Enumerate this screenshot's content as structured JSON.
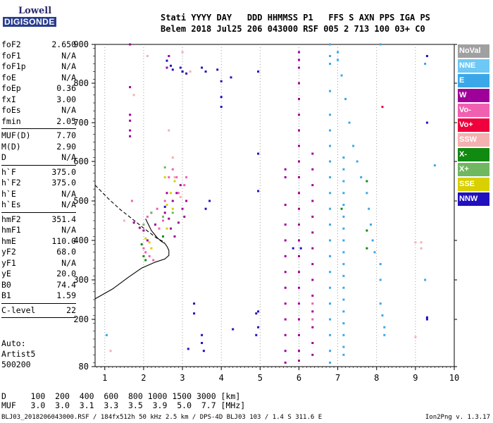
{
  "logo": {
    "line1": "Lowell",
    "line2": "DIGISONDE"
  },
  "header": {
    "labels": "Stati YYYY DAY   DDD HHMMSS P1   FFS S AXN PPS IGA PS",
    "values": "Belem 2018 Jul25 206 043000 RSF 005 2 713 100 03+ C0"
  },
  "params": [
    {
      "name": "foF2",
      "value": "2.650"
    },
    {
      "name": "foF1",
      "value": "N/A"
    },
    {
      "name": "foF1p",
      "value": "N/A"
    },
    {
      "name": "foE",
      "value": "N/A"
    },
    {
      "name": "foEp",
      "value": "0.36"
    },
    {
      "name": "fxI",
      "value": "3.00"
    },
    {
      "name": "foEs",
      "value": "N/A"
    },
    {
      "name": "fmin",
      "value": "2.05"
    },
    {
      "sep": true
    },
    {
      "name": "MUF(D)",
      "value": "7.70"
    },
    {
      "name": "M(D)",
      "value": "2.90"
    },
    {
      "name": "D",
      "value": "N/A"
    },
    {
      "sep": true
    },
    {
      "name": "h`F",
      "value": "375.0"
    },
    {
      "name": "h`F2",
      "value": "375.0"
    },
    {
      "name": "h`E",
      "value": "N/A"
    },
    {
      "name": "h`Es",
      "value": "N/A"
    },
    {
      "sep": true
    },
    {
      "name": "hmF2",
      "value": "351.4"
    },
    {
      "name": "hmF1",
      "value": "N/A"
    },
    {
      "name": "hmE",
      "value": "110.0"
    },
    {
      "name": "yF2",
      "value": "68.0"
    },
    {
      "name": "yF1",
      "value": "N/A"
    },
    {
      "name": "yE",
      "value": "20.0"
    },
    {
      "name": "B0",
      "value": "74.4"
    },
    {
      "name": "B1",
      "value": "1.59"
    },
    {
      "sep": true
    },
    {
      "name": "C-level",
      "value": "22"
    },
    {
      "sep": true
    }
  ],
  "auto": {
    "line1": "Auto:",
    "line2": "Artist5",
    "line3": "500200"
  },
  "muf_table": {
    "d_row": "D     100  200  400  600  800 1000 1500 3000 [km]",
    "muf_row": "MUF   3.0  3.0  3.1  3.3  3.5  3.9  5.0  7.7 [MHz]"
  },
  "footer": {
    "left": "BLJ03_2018206043000.RSF / 184fx512h 50 kHz 2.5 km / DPS-4D BLJ03 103 / 1.4 S 311.6 E",
    "right": "Ion2Png v. 1.3.17"
  },
  "legend": [
    {
      "label": "NoVal",
      "color": "#a0a0a0"
    },
    {
      "label": "NNE",
      "color": "#6ec8f5"
    },
    {
      "label": "E",
      "color": "#3aa8e8"
    },
    {
      "label": "W",
      "color": "#a0009a"
    },
    {
      "label": "Vo-",
      "color": "#f060b0"
    },
    {
      "label": "Vo+",
      "color": "#f0003c"
    },
    {
      "label": "SSW",
      "color": "#f5b0b0"
    },
    {
      "label": "X-",
      "color": "#108a10"
    },
    {
      "label": "X+",
      "color": "#70b860"
    },
    {
      "label": "SSE",
      "color": "#d8d000"
    },
    {
      "label": "NNW",
      "color": "#2010c0"
    }
  ],
  "chart_data": {
    "type": "scatter",
    "title": "",
    "xlabel": "",
    "ylabel": "",
    "xlim": [
      0.75,
      10
    ],
    "ylim": [
      80,
      900
    ],
    "x_ticks": [
      1,
      2,
      3,
      4,
      5,
      6,
      7,
      8,
      9,
      10
    ],
    "y_ticks": [
      80,
      200,
      300,
      400,
      500,
      600,
      700,
      800,
      900
    ],
    "grid": "vertical dotted at integer MHz",
    "series": [
      {
        "color_key": "W",
        "points": [
          [
            1.65,
            900
          ],
          [
            1.65,
            790
          ],
          [
            1.65,
            720
          ],
          [
            1.65,
            705
          ],
          [
            1.65,
            680
          ],
          [
            1.65,
            665
          ],
          [
            1.75,
            445
          ],
          [
            1.9,
            432
          ],
          [
            2.0,
            425
          ],
          [
            2.1,
            400
          ],
          [
            2.3,
            440
          ],
          [
            2.55,
            470
          ],
          [
            2.65,
            455
          ],
          [
            2.75,
            500
          ],
          [
            2.85,
            520
          ],
          [
            2.95,
            540
          ],
          [
            3.0,
            480
          ],
          [
            3.05,
            460
          ],
          [
            3.1,
            500
          ],
          [
            2.7,
            430
          ],
          [
            2.8,
            410
          ],
          [
            2.9,
            445
          ],
          [
            2.6,
            520
          ],
          [
            6.0,
            880
          ],
          [
            6.0,
            860
          ],
          [
            6.0,
            840
          ],
          [
            6.0,
            800
          ],
          [
            6.0,
            760
          ],
          [
            6.0,
            720
          ],
          [
            6.0,
            680
          ],
          [
            6.0,
            640
          ],
          [
            6.0,
            600
          ],
          [
            6.0,
            560
          ],
          [
            6.0,
            520
          ],
          [
            6.0,
            480
          ],
          [
            6.0,
            440
          ],
          [
            6.0,
            400
          ],
          [
            6.0,
            360
          ],
          [
            6.0,
            320
          ],
          [
            6.0,
            280
          ],
          [
            6.0,
            240
          ],
          [
            6.0,
            200
          ],
          [
            6.0,
            160
          ],
          [
            6.0,
            120
          ],
          [
            6.0,
            95
          ],
          [
            6.35,
            620
          ],
          [
            6.35,
            580
          ],
          [
            6.35,
            540
          ],
          [
            6.35,
            500
          ],
          [
            6.35,
            460
          ],
          [
            6.35,
            420
          ],
          [
            6.35,
            380
          ],
          [
            6.35,
            340
          ],
          [
            6.35,
            300
          ],
          [
            6.35,
            260
          ],
          [
            6.35,
            220
          ],
          [
            6.35,
            180
          ],
          [
            6.35,
            140
          ],
          [
            6.35,
            110
          ],
          [
            5.65,
            580
          ],
          [
            5.65,
            560
          ],
          [
            5.65,
            490
          ],
          [
            5.65,
            440
          ],
          [
            5.65,
            400
          ],
          [
            5.65,
            360
          ],
          [
            5.65,
            320
          ],
          [
            5.65,
            280
          ],
          [
            5.65,
            240
          ],
          [
            5.65,
            200
          ],
          [
            5.65,
            160
          ],
          [
            5.65,
            120
          ],
          [
            5.65,
            90
          ],
          [
            3.0,
            830
          ],
          [
            2.6,
            840
          ],
          [
            2.65,
            870
          ]
        ]
      },
      {
        "color_key": "NNW",
        "points": [
          [
            2.6,
            858
          ],
          [
            2.7,
            845
          ],
          [
            2.75,
            835
          ],
          [
            2.95,
            840
          ],
          [
            3.0,
            830
          ],
          [
            3.1,
            825
          ],
          [
            3.5,
            840
          ],
          [
            3.6,
            830
          ],
          [
            3.9,
            835
          ],
          [
            4.0,
            805
          ],
          [
            4.0,
            765
          ],
          [
            4.0,
            740
          ],
          [
            4.25,
            815
          ],
          [
            4.95,
            830
          ],
          [
            4.95,
            620
          ],
          [
            4.95,
            525
          ],
          [
            3.6,
            480
          ],
          [
            3.7,
            500
          ],
          [
            2.55,
            485
          ],
          [
            3.3,
            240
          ],
          [
            3.3,
            215
          ],
          [
            3.15,
            125
          ],
          [
            3.5,
            160
          ],
          [
            3.5,
            140
          ],
          [
            3.55,
            120
          ],
          [
            4.3,
            175
          ],
          [
            4.95,
            220
          ],
          [
            4.9,
            215
          ],
          [
            4.95,
            180
          ],
          [
            4.9,
            160
          ],
          [
            5.85,
            380
          ],
          [
            6.05,
            380
          ],
          [
            9.3,
            870
          ],
          [
            9.3,
            700
          ],
          [
            9.3,
            205
          ],
          [
            9.3,
            200
          ]
        ]
      },
      {
        "color_key": "E",
        "points": [
          [
            6.8,
            900
          ],
          [
            6.8,
            870
          ],
          [
            6.8,
            850
          ],
          [
            6.8,
            780
          ],
          [
            6.8,
            720
          ],
          [
            6.8,
            680
          ],
          [
            6.8,
            640
          ],
          [
            6.8,
            600
          ],
          [
            6.8,
            560
          ],
          [
            6.8,
            520
          ],
          [
            6.8,
            480
          ],
          [
            6.8,
            440
          ],
          [
            6.8,
            400
          ],
          [
            6.8,
            360
          ],
          [
            6.8,
            320
          ],
          [
            6.8,
            280
          ],
          [
            6.8,
            240
          ],
          [
            6.8,
            200
          ],
          [
            6.8,
            160
          ],
          [
            6.8,
            120
          ],
          [
            6.8,
            90
          ],
          [
            7.15,
            610
          ],
          [
            7.15,
            580
          ],
          [
            7.15,
            550
          ],
          [
            7.15,
            520
          ],
          [
            7.15,
            490
          ],
          [
            7.15,
            460
          ],
          [
            7.15,
            430
          ],
          [
            7.15,
            400
          ],
          [
            7.15,
            370
          ],
          [
            7.15,
            340
          ],
          [
            7.15,
            310
          ],
          [
            7.15,
            280
          ],
          [
            7.15,
            250
          ],
          [
            7.15,
            220
          ],
          [
            7.15,
            190
          ],
          [
            7.15,
            160
          ],
          [
            7.15,
            130
          ],
          [
            7.15,
            110
          ],
          [
            7.0,
            880
          ],
          [
            7.0,
            860
          ],
          [
            7.1,
            820
          ],
          [
            7.2,
            760
          ],
          [
            7.3,
            700
          ],
          [
            7.4,
            640
          ],
          [
            7.5,
            600
          ],
          [
            7.6,
            560
          ],
          [
            7.75,
            520
          ],
          [
            7.8,
            480
          ],
          [
            7.85,
            440
          ],
          [
            7.9,
            400
          ],
          [
            7.95,
            370
          ],
          [
            8.1,
            340
          ],
          [
            8.1,
            300
          ],
          [
            8.1,
            240
          ],
          [
            8.15,
            210
          ],
          [
            8.2,
            180
          ],
          [
            8.2,
            160
          ],
          [
            8.1,
            900
          ],
          [
            9.25,
            850
          ],
          [
            9.25,
            300
          ],
          [
            9.5,
            590
          ],
          [
            1.05,
            160
          ]
        ]
      },
      {
        "color_key": "Vo-",
        "points": [
          [
            2.1,
            460
          ],
          [
            2.2,
            470
          ],
          [
            2.35,
            480
          ],
          [
            2.4,
            430
          ],
          [
            2.5,
            450
          ],
          [
            2.55,
            500
          ],
          [
            2.65,
            560
          ],
          [
            2.75,
            580
          ],
          [
            2.85,
            560
          ],
          [
            2.9,
            520
          ],
          [
            3.05,
            540
          ],
          [
            3.1,
            560
          ],
          [
            1.7,
            500
          ],
          [
            2.0,
            380
          ],
          [
            2.05,
            370
          ],
          [
            2.15,
            360
          ],
          [
            2.25,
            350
          ],
          [
            6.35,
            240
          ],
          [
            6.35,
            200
          ]
        ]
      },
      {
        "color_key": "Vo+",
        "points": [
          [
            8.15,
            740
          ]
        ]
      },
      {
        "color_key": "SSW",
        "points": [
          [
            1.75,
            770
          ],
          [
            2.1,
            870
          ],
          [
            2.65,
            680
          ],
          [
            2.75,
            610
          ],
          [
            2.8,
            560
          ],
          [
            2.95,
            510
          ],
          [
            1.5,
            450
          ],
          [
            9.0,
            395
          ],
          [
            9.15,
            395
          ],
          [
            9.15,
            380
          ],
          [
            9.0,
            155
          ],
          [
            1.15,
            120
          ],
          [
            3.0,
            880
          ],
          [
            3.2,
            830
          ]
        ]
      },
      {
        "color_key": "X-",
        "points": [
          [
            2.0,
            360
          ],
          [
            2.05,
            350
          ],
          [
            1.95,
            390
          ],
          [
            2.5,
            410
          ],
          [
            7.1,
            480
          ],
          [
            7.75,
            550
          ],
          [
            7.75,
            425
          ],
          [
            7.75,
            380
          ]
        ]
      },
      {
        "color_key": "X+",
        "points": [
          [
            2.55,
            585
          ],
          [
            2.0,
            440
          ],
          [
            2.2,
            470
          ],
          [
            2.5,
            460
          ],
          [
            2.75,
            470
          ]
        ]
      },
      {
        "color_key": "SSE",
        "points": [
          [
            2.05,
            405
          ],
          [
            2.15,
            395
          ],
          [
            2.2,
            380
          ],
          [
            2.55,
            560
          ],
          [
            2.6,
            490
          ],
          [
            2.7,
            520
          ],
          [
            2.8,
            550
          ],
          [
            2.75,
            480
          ],
          [
            2.6,
            430
          ]
        ]
      }
    ],
    "lines": [
      {
        "style": "solid",
        "points": [
          [
            0.75,
            252
          ],
          [
            1.2,
            277
          ],
          [
            1.6,
            306
          ],
          [
            1.95,
            330
          ],
          [
            2.3,
            345
          ],
          [
            2.55,
            353
          ],
          [
            2.65,
            362
          ],
          [
            2.65,
            375
          ],
          [
            2.6,
            385
          ],
          [
            2.55,
            392
          ],
          [
            2.45,
            398
          ],
          [
            2.35,
            407
          ],
          [
            2.2,
            425
          ],
          [
            2.05,
            455
          ]
        ]
      },
      {
        "style": "dashed",
        "points": [
          [
            0.75,
            540
          ],
          [
            1.1,
            505
          ],
          [
            1.4,
            478
          ],
          [
            1.7,
            455
          ],
          [
            1.95,
            435
          ],
          [
            2.15,
            420
          ],
          [
            2.35,
            405
          ],
          [
            2.55,
            395
          ]
        ]
      }
    ]
  }
}
